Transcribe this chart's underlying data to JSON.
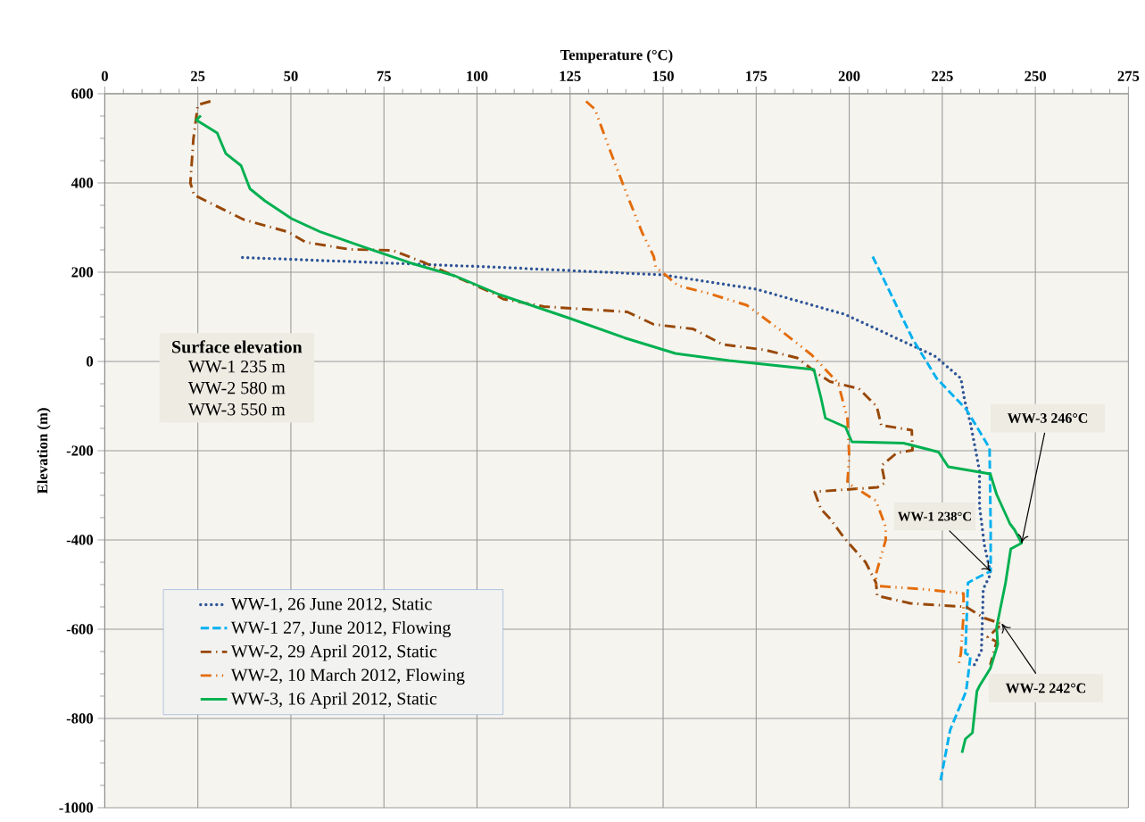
{
  "chart_data": {
    "type": "line",
    "xlabel": "Temperature (°C)",
    "ylabel": "Elevation (m)",
    "xlim": [
      0,
      275
    ],
    "xticks": [
      0,
      25,
      50,
      75,
      100,
      125,
      150,
      175,
      200,
      225,
      250,
      275
    ],
    "ylim": [
      -1000,
      600
    ],
    "yticks": [
      -1000,
      -800,
      -600,
      -400,
      -200,
      0,
      200,
      400,
      600
    ],
    "grid": true,
    "legend": "bottom left",
    "marker": "none",
    "series": [
      {
        "name": "WW-1, 26 June 2012, Static",
        "color": "#2f5597",
        "line_style": "dotted",
        "x": [
          37,
          106,
          150,
          175,
          199,
          223,
          230,
          231,
          232.6,
          235,
          235,
          236.3,
          238,
          236,
          235.8,
          235.5,
          233.6
        ],
        "values": [
          233,
          211,
          194,
          162,
          105,
          12,
          -38,
          -87,
          -140,
          -245,
          -324,
          -411,
          -476,
          -510,
          -575,
          -648,
          -680
        ]
      },
      {
        "name": "WW-1 27, June 2012, Flowing",
        "color": "#00b0f0",
        "line_style": "dashed",
        "x": [
          206.3,
          217,
          223.5,
          231.4,
          237.7,
          238,
          238,
          234.8,
          231.9,
          231.2,
          232.6,
          231.4,
          227.1,
          224.5
        ],
        "values": [
          235,
          51,
          -38,
          -107,
          -194,
          -377,
          -470,
          -483,
          -496,
          -654,
          -660,
          -739,
          -826,
          -941
        ]
      },
      {
        "name": "WW-2, 29 April 2012, Static",
        "color": "#984807",
        "line_style": "dashdot",
        "x": [
          28.4,
          25,
          23.8,
          23,
          24,
          37.3,
          49.3,
          54,
          66,
          77.4,
          86,
          104.5,
          107,
          118,
          140.4,
          147.5,
          158,
          166,
          177.3,
          186,
          191.6,
          194.8,
          202.6,
          207.4,
          208.6,
          216.8,
          217,
          212.8,
          208.7,
          209.6,
          207.6,
          190.7,
          192.4,
          194.7,
          198.8,
          204.4,
          207.2,
          207.5,
          216.4,
          231.4,
          236.3,
          241,
          237.2,
          239.6,
          237.9
        ],
        "values": [
          583,
          575,
          498,
          400,
          373,
          318,
          290,
          267,
          251,
          249,
          221,
          152,
          140,
          123,
          111,
          83,
          73,
          38,
          26,
          8,
          -28,
          -45,
          -61,
          -101,
          -143,
          -154,
          -199,
          -205,
          -233,
          -272,
          -282,
          -292,
          -331,
          -351,
          -397,
          -450,
          -496,
          -525,
          -542,
          -550,
          -575,
          -588,
          -618,
          -628,
          -680
        ]
      },
      {
        "name": "WW-2, 10 March 2012, Flowing",
        "color": "#e46c0a",
        "line_style": "dashdotdot",
        "x": [
          129.3,
          131.7,
          135.6,
          140,
          144.4,
          147.5,
          148,
          150.9,
          154,
          162,
          172.5,
          182,
          190,
          197,
          199.5,
          200,
          199.5,
          207.2,
          209.8,
          209.8,
          207.2,
          207.2,
          219.5,
          230.7,
          230.7,
          230,
          229.3
        ],
        "values": [
          583,
          565,
          476,
          380,
          288,
          235,
          211,
          192,
          170,
          153,
          126,
          67,
          14,
          -48,
          -127,
          -213,
          -272,
          -312,
          -371,
          -400,
          -476,
          -503,
          -510,
          -520,
          -569,
          -654,
          -684
        ]
      },
      {
        "name": "WW-3, 16 April 2012, Static",
        "color": "#00b050",
        "line_style": "solid",
        "x": [
          25.8,
          24.6,
          30.2,
          32.5,
          36.6,
          39,
          43,
          50.2,
          58,
          70,
          82,
          94,
          106,
          124.8,
          139.6,
          153.3,
          167.7,
          190.5,
          192.4,
          193.6,
          199,
          200.7,
          214.6,
          224,
          226.6,
          237.9,
          239.6,
          243.2,
          244.4,
          246.3,
          243.4,
          242,
          239.6,
          239.9,
          237.9,
          235,
          234.3,
          233.1,
          231.2,
          230.3
        ],
        "values": [
          551,
          541,
          512,
          466,
          439,
          387,
          360,
          320,
          290,
          255,
          221,
          192,
          150,
          97,
          53,
          18,
          2,
          -18,
          -81,
          -127,
          -147,
          -180,
          -183,
          -203,
          -236,
          -252,
          -298,
          -364,
          -377,
          -407,
          -420,
          -496,
          -595,
          -634,
          -688,
          -727,
          -739,
          -832,
          -846,
          -877
        ]
      }
    ],
    "annotations": [
      "Surface elevation",
      "WW-1 235 m",
      "WW-2 580 m",
      "WW-3 550 m",
      {
        "text": "WW-3 246°C",
        "x": 246.3,
        "y": -407
      },
      {
        "text": "WW-1 238°C",
        "x": 238,
        "y": -470
      },
      {
        "text": "WW-2 242°C",
        "x": 241,
        "y": -588
      }
    ]
  }
}
